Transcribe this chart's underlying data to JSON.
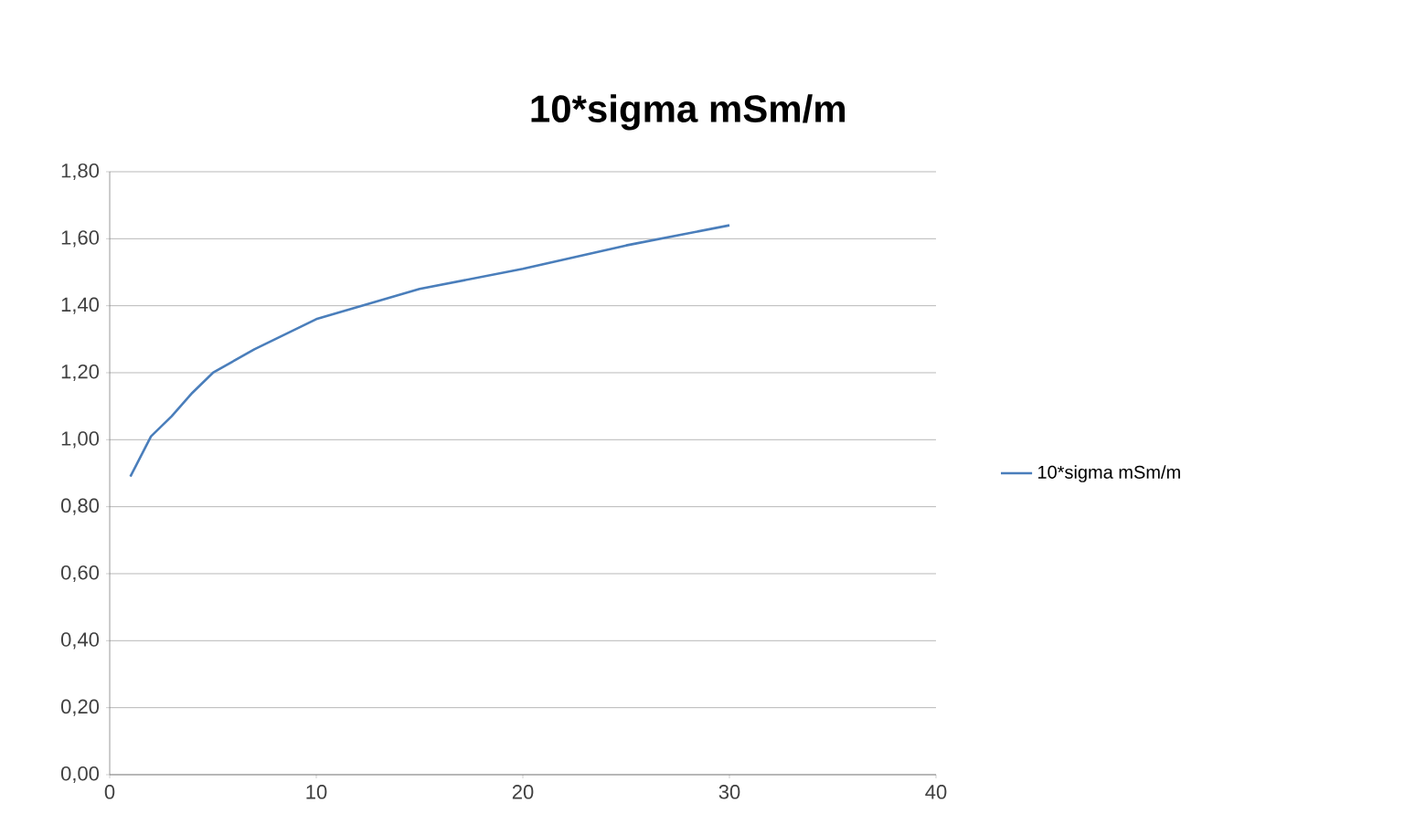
{
  "chart_data": {
    "type": "line",
    "title": "10*sigma mSm/m",
    "x": [
      1,
      2,
      3,
      4,
      5,
      7,
      10,
      15,
      20,
      25,
      30
    ],
    "series": [
      {
        "name": "10*sigma mSm/m",
        "color": "#4a7ebb",
        "values": [
          0.89,
          1.01,
          1.07,
          1.14,
          1.2,
          1.27,
          1.36,
          1.45,
          1.51,
          1.58,
          1.64
        ]
      }
    ],
    "xlim": [
      0,
      40
    ],
    "xticks": [
      0,
      10,
      20,
      30,
      40
    ],
    "ylim": [
      0,
      1.8
    ],
    "yticks": [
      {
        "value": 0,
        "label": "0,00"
      },
      {
        "value": 0.2,
        "label": "0,20"
      },
      {
        "value": 0.4,
        "label": "0,40"
      },
      {
        "value": 0.6,
        "label": "0,60"
      },
      {
        "value": 0.8,
        "label": "0,80"
      },
      {
        "value": 1.0,
        "label": "1,00"
      },
      {
        "value": 1.2,
        "label": "1,20"
      },
      {
        "value": 1.4,
        "label": "1,40"
      },
      {
        "value": 1.6,
        "label": "1,60"
      },
      {
        "value": 1.8,
        "label": "1,80"
      }
    ],
    "grid": "y",
    "legend": "right",
    "marker": "none",
    "line_style": "solid"
  }
}
